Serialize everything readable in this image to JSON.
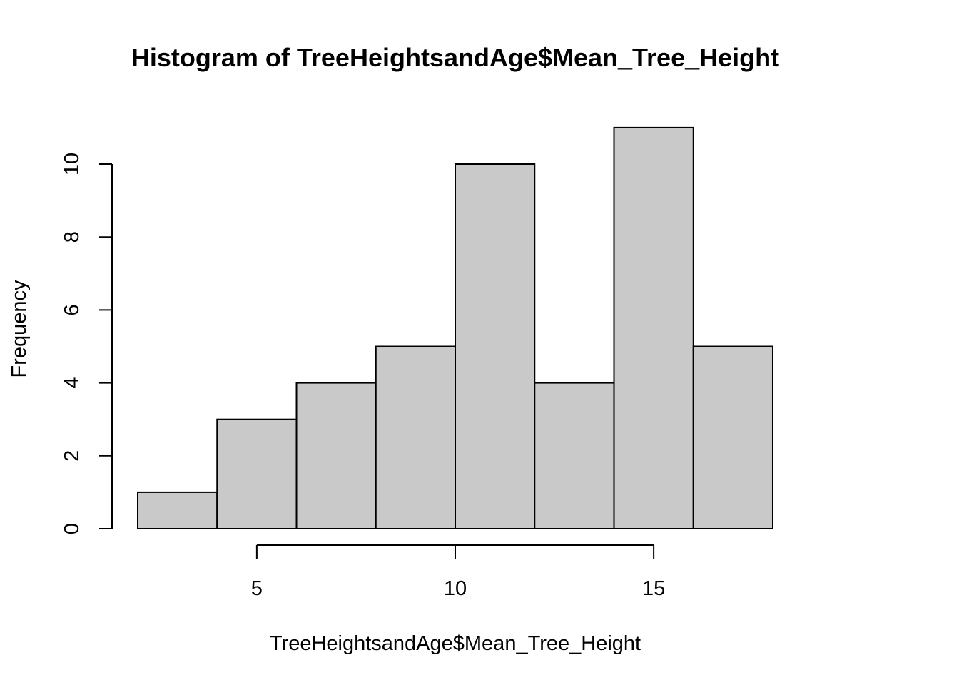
{
  "chart_data": {
    "type": "bar",
    "subtype": "histogram",
    "title": "Histogram of TreeHeightsandAge$Mean_Tree_Height",
    "xlabel": "TreeHeightsandAge$Mean_Tree_Height",
    "ylabel": "Frequency",
    "bins": [
      {
        "start": 2,
        "end": 4,
        "count": 1
      },
      {
        "start": 4,
        "end": 6,
        "count": 3
      },
      {
        "start": 6,
        "end": 8,
        "count": 4
      },
      {
        "start": 8,
        "end": 10,
        "count": 5
      },
      {
        "start": 10,
        "end": 12,
        "count": 10
      },
      {
        "start": 12,
        "end": 14,
        "count": 4
      },
      {
        "start": 14,
        "end": 16,
        "count": 11
      },
      {
        "start": 16,
        "end": 18,
        "count": 5
      }
    ],
    "xticks": [
      "5",
      "10",
      "15"
    ],
    "yticks": [
      "0",
      "2",
      "4",
      "6",
      "8",
      "10"
    ],
    "xlim": [
      2,
      18
    ],
    "ylim": [
      0,
      11
    ],
    "bar_fill": "#c9c9c9",
    "bar_stroke": "#000000",
    "grid": false,
    "legend": "none"
  }
}
